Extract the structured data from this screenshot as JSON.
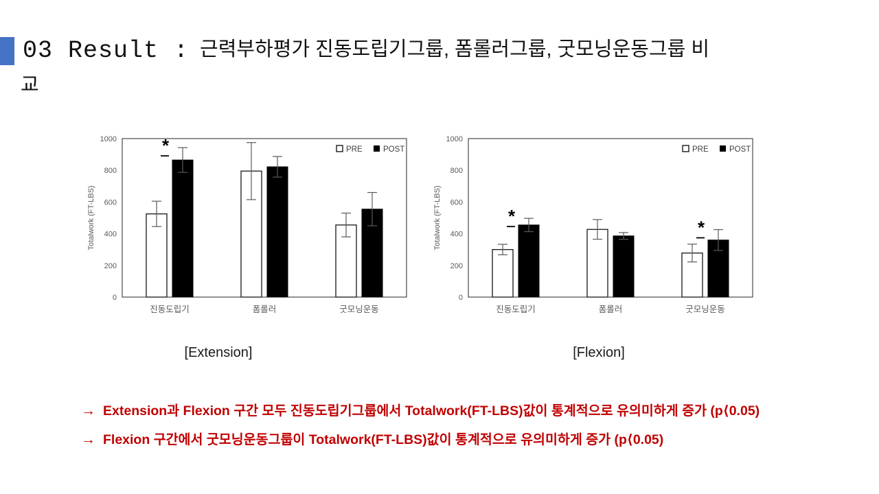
{
  "header": {
    "accent_color": "#4472C4",
    "prefix": "03 Result :",
    "title_line1": "근력부하평가 진동도립기그룹, 폼롤러그룹, 굿모닝운동그룹 비",
    "title_line2": "교"
  },
  "chart_data": [
    {
      "type": "bar",
      "title": "[Extension]",
      "ylabel": "Totalwork (FT-LBS)",
      "ylim": [
        0,
        1000
      ],
      "ytick_step": 200,
      "grid": false,
      "legend_position": "top-right",
      "categories": [
        "진동도립기",
        "폼롤러",
        "굿모닝운동"
      ],
      "series": [
        {
          "name": "PRE",
          "fill": "#ffffff",
          "values": [
            525,
            795,
            455
          ],
          "errors": [
            80,
            180,
            75
          ]
        },
        {
          "name": "POST",
          "fill": "#000000",
          "values": [
            865,
            822,
            555
          ],
          "errors": [
            78,
            65,
            105
          ]
        }
      ],
      "significance": [
        {
          "group": 0,
          "symbol": "*"
        }
      ]
    },
    {
      "type": "bar",
      "title": "[Flexion]",
      "ylabel": "Totalwork (FT-LBS)",
      "ylim": [
        0,
        1000
      ],
      "ytick_step": 200,
      "grid": false,
      "legend_position": "top-right",
      "categories": [
        "진동도립기",
        "폼롤러",
        "굿모닝운동"
      ],
      "series": [
        {
          "name": "PRE",
          "fill": "#ffffff",
          "values": [
            300,
            427,
            278
          ],
          "errors": [
            33,
            62,
            56
          ]
        },
        {
          "name": "POST",
          "fill": "#000000",
          "values": [
            455,
            386,
            360
          ],
          "errors": [
            42,
            21,
            66
          ]
        }
      ],
      "significance": [
        {
          "group": 0,
          "symbol": "*"
        },
        {
          "group": 2,
          "symbol": "*"
        }
      ]
    }
  ],
  "footnotes": {
    "color": "#C00000",
    "arrow": "→",
    "lines": [
      "Extension과 Flexion 구간 모두 진동도립기그룹에서 Totalwork(FT-LBS)값이 통계적으로 유의미하게 증가 (p⟨0.05)",
      "Flexion 구간에서 굿모닝운동그룹이 Totalwork(FT-LBS)값이 통계적으로 유의미하게 증가 (p⟨0.05)"
    ]
  },
  "chart_style": {
    "axis_color": "#262626",
    "tick_color": "#595959",
    "error_bar_color": "#595959",
    "legend_text_color": "#404040",
    "significance_color": "#000000"
  }
}
